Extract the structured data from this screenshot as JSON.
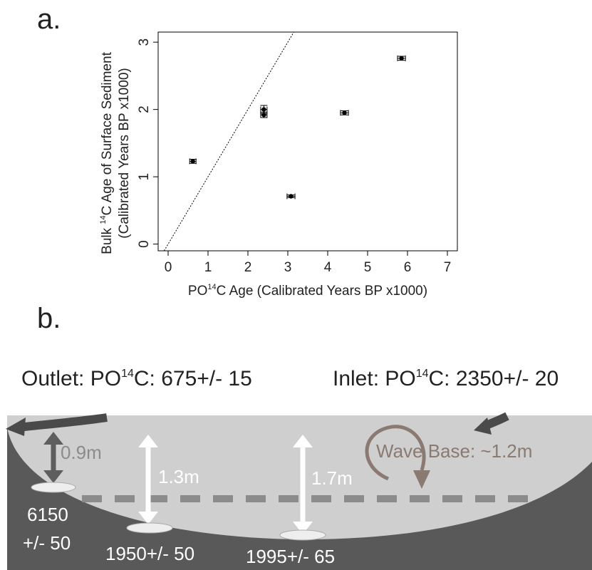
{
  "panel_labels": [
    "a.",
    "b."
  ],
  "chart_data": {
    "type": "scatter",
    "y_label": {
      "line1": [
        "Bulk ",
        "14",
        "C Age of Surface Sediment"
      ],
      "line2": "(Calibrated Years BP x1000)"
    },
    "x_label": [
      "PO",
      "14",
      "C Age (Calibrated Years BP x1000)"
    ],
    "x": [
      0.62,
      2.4,
      2.4,
      3.08,
      4.42,
      5.85
    ],
    "values": [
      1.23,
      2.0,
      1.92,
      0.71,
      1.95,
      2.76
    ],
    "xerr": [
      0.08,
      0.08,
      0.08,
      0.1,
      0.1,
      0.1
    ],
    "yerr": [
      0.03,
      0.06,
      0.04,
      0.02,
      0.03,
      0.03
    ],
    "color": "#000000",
    "xlim": [
      -0.25,
      7.25
    ],
    "ylim": [
      -0.1,
      3.15
    ],
    "xticks": [
      0,
      1,
      2,
      3,
      4,
      5,
      6,
      7
    ],
    "yticks": [
      0,
      1,
      2,
      3
    ],
    "one_to_one_line": true
  },
  "diagram": {
    "outlet": [
      "Outlet: PO",
      "14",
      "C: 675+/- 15"
    ],
    "inlet": [
      "Inlet: PO",
      "14",
      "C: 2350+/- 20"
    ],
    "depths": [
      "0.9m",
      "1.3m",
      "1.7m"
    ],
    "wave_base": "Wave Base: ~1.2m",
    "samples": [
      [
        "6150",
        "+/- 50"
      ],
      [
        "1950+/- 50"
      ],
      [
        "1995+/- 65"
      ]
    ]
  }
}
